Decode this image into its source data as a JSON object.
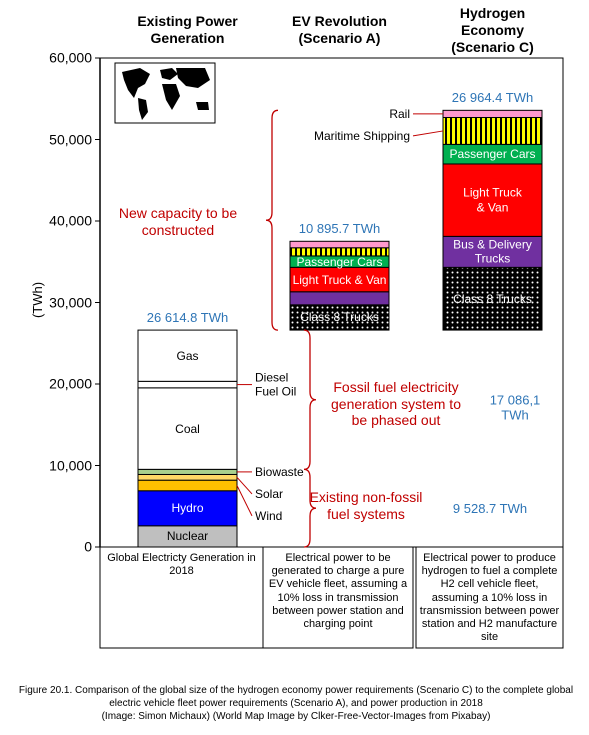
{
  "chart_data": {
    "type": "floating_stacked_bar",
    "y_label": "(TWh)",
    "ylim": [
      0,
      60000
    ],
    "yticks": [
      0,
      {
        "value": 10000,
        "label": "10,000"
      },
      {
        "value": 20000,
        "label": "20,000"
      },
      {
        "value": 30000,
        "label": "30,000"
      },
      {
        "value": 40000,
        "label": "40,000"
      },
      {
        "value": 50000,
        "label": "50,000"
      },
      {
        "value": 60000,
        "label": "60,000"
      }
    ],
    "total_color": "#2e75b6",
    "annotation_color": "#c00000",
    "columns": [
      {
        "header": "Existing Power\nGeneration",
        "base": 0,
        "total": 26614.8,
        "total_label": "26 614.8 TWh",
        "callout_side": "right",
        "description": "Global Electricty Generation in 2018",
        "segments": [
          {
            "name": "Nuclear",
            "color": "#bfbfbf",
            "value": 2600
          },
          {
            "name": "Hydro",
            "color": "#0000ff",
            "value": 4300
          },
          {
            "name": "Wind",
            "color": "#ffc000",
            "value": 1300,
            "callout": true
          },
          {
            "name": "Solar",
            "color": "#ffd966",
            "value": 700,
            "callout": true
          },
          {
            "name": "Biowaste",
            "color": "#a9d08e",
            "value": 628.7,
            "callout": true
          },
          {
            "name": "Coal",
            "color": "#ffffff",
            "value": 10000
          },
          {
            "name": "Diesel\nFuel Oil",
            "color": "#ffffff",
            "value": 800,
            "callout": true
          },
          {
            "name": "Gas",
            "color": "#ffffff",
            "value": 6286.1
          }
        ]
      },
      {
        "header": "EV Revolution\n(Scenario A)",
        "base": 26614.8,
        "total": 10895.7,
        "total_label": "10 895.7 TWh",
        "callout_side": "left",
        "description": "Electrical power to be generated to charge a pure EV vehicle fleet, assuming a 10% loss in transmission between power station and charging point",
        "segments": [
          {
            "name": "Class 8 Trucks",
            "color": "#000000",
            "pattern": "dots",
            "value": 3100
          },
          {
            "name": null,
            "color": "#7030a0",
            "value": 1600
          },
          {
            "name": "Light Truck & Van",
            "color": "#ff0000",
            "value": 3000
          },
          {
            "name": "Passenger Cars",
            "color": "#00b050",
            "value": 1400
          },
          {
            "name": null,
            "color": "#ffff00",
            "pattern": "stripes",
            "value": 1000
          },
          {
            "name": null,
            "color": "#ff99cc",
            "value": 795.7
          }
        ]
      },
      {
        "header": "Hydrogen Economy\n(Scenario C)",
        "base": 26614.8,
        "total": 26964.4,
        "total_label": "26 964.4 TWh",
        "callout_side": "left",
        "description": "Electrical power to produce hydrogen to fuel a complete H2 cell vehicle fleet, assuming a 10% loss in transmission between power station and H2 manufacture site",
        "segments": [
          {
            "name": "Class 8 Trucks",
            "color": "#000000",
            "pattern": "dots",
            "value": 7700
          },
          {
            "name": "Bus & Delivery\nTrucks",
            "color": "#7030a0",
            "value": 3800
          },
          {
            "name": "Light Truck\n& Van",
            "color": "#ff0000",
            "value": 8885.2
          },
          {
            "name": "Passenger Cars",
            "color": "#00b050",
            "value": 2400
          },
          {
            "name": "Maritime Shipping",
            "color": "#ffff00",
            "pattern": "stripes",
            "value": 3300,
            "callout": true
          },
          {
            "name": "Rail",
            "color": "#ff99cc",
            "value": 879.2,
            "callout": true
          }
        ]
      }
    ],
    "annotations": [
      {
        "text": "New capacity to be\nconstructed"
      },
      {
        "text": "Fossil fuel electricity\ngeneration system to\nbe phased out",
        "value": 17086.1,
        "value_label": "17 086,1 TWh"
      },
      {
        "text": "Existing non-fossil\nfuel systems",
        "value": 9528.7,
        "value_label": "9 528.7 TWh"
      }
    ],
    "caption": [
      "Figure 20.1. Comparison of the global size of the hydrogen economy power requirements (Scenario C) to the complete global",
      "electric vehicle fleet power requirements (Scenario A), and power production in 2018",
      "(Image: Simon Michaux) (World Map Image by Clker-Free-Vector-Images from Pixabay)"
    ]
  }
}
